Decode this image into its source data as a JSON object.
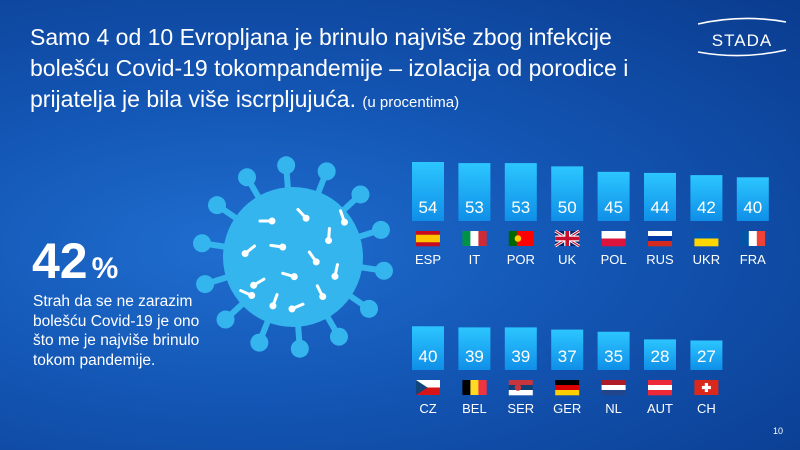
{
  "title": {
    "main": "Samo 4 od 10 Evropljana je brinulo najviše zbog infekcije bolešću Covid-19 tokompandemije – izolacija od porodice i prijatelja je bila više iscrpljujuća.",
    "unit": "(u procentima)"
  },
  "logo": {
    "text": "STADA"
  },
  "highlight": {
    "value": "42",
    "unit": "%",
    "description": "Strah da se ne zarazim bolešću Covid-19 je ono što me je najviše brinulo tokom pandemije."
  },
  "page_number": "10",
  "colors": {
    "background": "#1355b3",
    "bar_top": "#0f8fe8",
    "bar_bottom": "#2cc6ff",
    "virus": "#35b5ee",
    "virus_spots": "#ffffff"
  },
  "chart_data": [
    {
      "type": "bar",
      "categories": [
        "ESP",
        "IT",
        "POR",
        "UK",
        "POL",
        "RUS",
        "UKR",
        "FRA"
      ],
      "values": [
        54,
        53,
        53,
        50,
        45,
        44,
        42,
        40
      ],
      "flags": [
        "spain-flag",
        "italy-flag",
        "portugal-flag",
        "uk-flag",
        "poland-flag",
        "russia-flag",
        "ukraine-flag",
        "france-flag"
      ],
      "data_labels": true,
      "ylim": [
        0,
        54
      ]
    },
    {
      "type": "bar",
      "categories": [
        "CZ",
        "BEL",
        "SER",
        "GER",
        "NL",
        "AUT",
        "CH"
      ],
      "values": [
        40,
        39,
        39,
        37,
        35,
        28,
        27
      ],
      "flags": [
        "czech-flag",
        "belgium-flag",
        "serbia-flag",
        "germany-flag",
        "netherlands-flag",
        "austria-flag",
        "switzerland-flag"
      ],
      "data_labels": true,
      "ylim": [
        0,
        54
      ]
    }
  ]
}
